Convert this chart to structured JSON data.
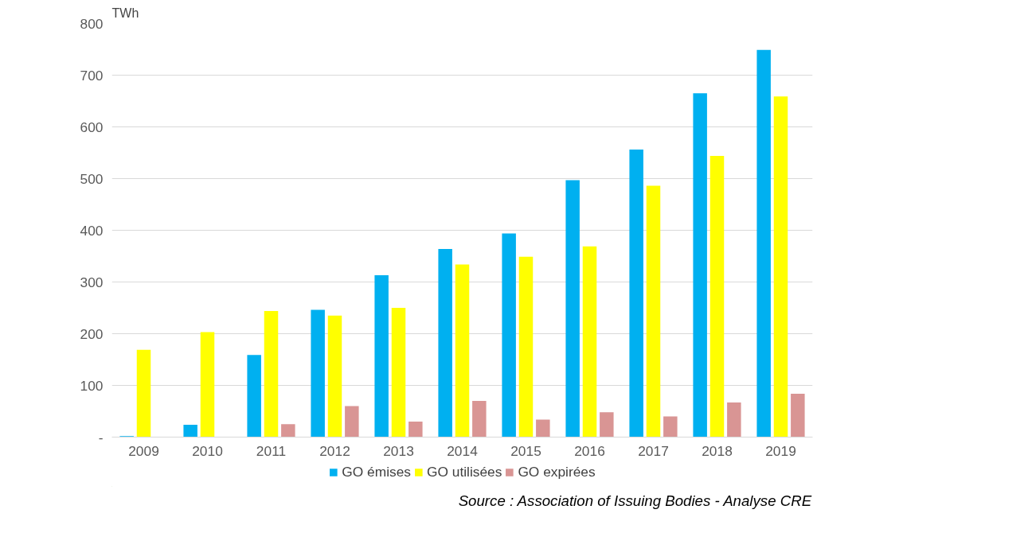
{
  "chart_data": {
    "type": "bar",
    "ylabel": "TWh",
    "categories": [
      "2009",
      "2010",
      "2011",
      "2012",
      "2013",
      "2014",
      "2015",
      "2016",
      "2017",
      "2018",
      "2019"
    ],
    "series": [
      {
        "name": "GO émises",
        "color": "#00b0f0",
        "values": [
          2,
          24,
          159,
          246,
          313,
          364,
          394,
          497,
          556,
          665,
          749
        ]
      },
      {
        "name": "GO utilisées",
        "color": "#ffff00",
        "values": [
          169,
          203,
          244,
          235,
          250,
          334,
          349,
          369,
          486,
          544,
          659
        ]
      },
      {
        "name": "GO expirées",
        "color": "#d99594",
        "values": [
          null,
          null,
          25,
          60,
          30,
          70,
          34,
          48,
          40,
          67,
          84
        ]
      }
    ],
    "ylim": [
      0,
      800
    ],
    "yticks": [
      {
        "value": 0,
        "label": "-"
      },
      100,
      200,
      300,
      400,
      500,
      600,
      700,
      800
    ],
    "grid": "y",
    "legend": "bottom",
    "annotations": [
      "Source : Association of Issuing Bodies - Analyse CRE"
    ]
  }
}
